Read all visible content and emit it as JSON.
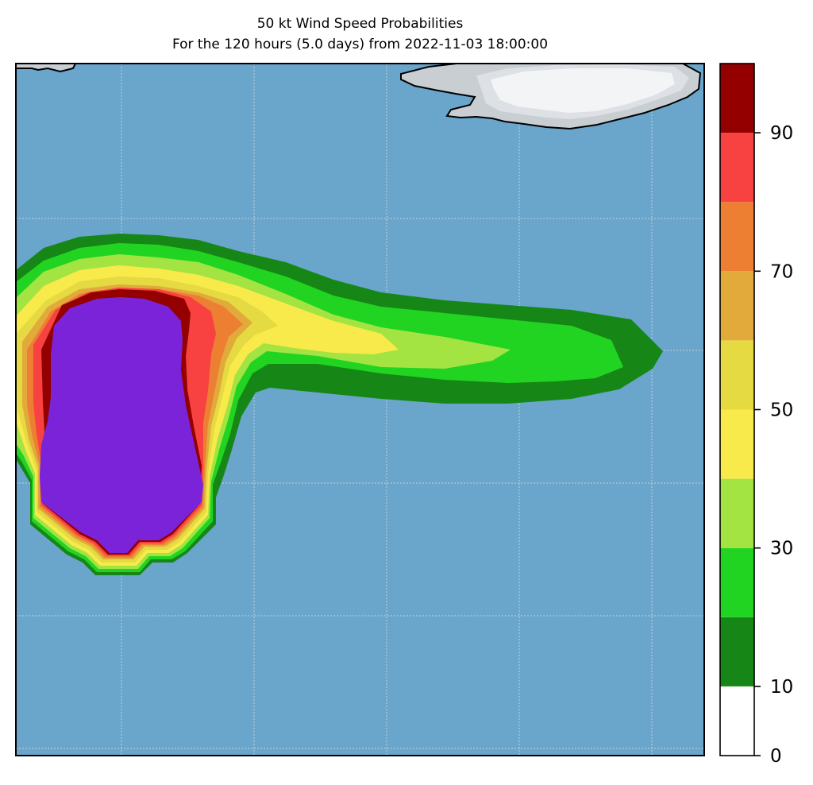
{
  "title": "50 kt Wind Speed Probabilities",
  "subtitle": "For the 120 hours (5.0 days) from 2022-11-03 18:00:00",
  "map": {
    "ocean_color": "#6aa5cb",
    "land_color": "#f3f4f6",
    "coastline_color": "#000000",
    "gridlines": true
  },
  "colorbar": {
    "levels": [
      0,
      10,
      20,
      30,
      40,
      50,
      60,
      70,
      80,
      90,
      100
    ],
    "colors": [
      "#ffffff",
      "#168716",
      "#22d422",
      "#a3e442",
      "#f9ea4b",
      "#e5da42",
      "#e2aa3b",
      "#ed7f33",
      "#f84242",
      "#940000",
      "#7b23d9"
    ],
    "tick_labels": [
      "0",
      "10",
      "30",
      "50",
      "70",
      "90"
    ]
  }
}
